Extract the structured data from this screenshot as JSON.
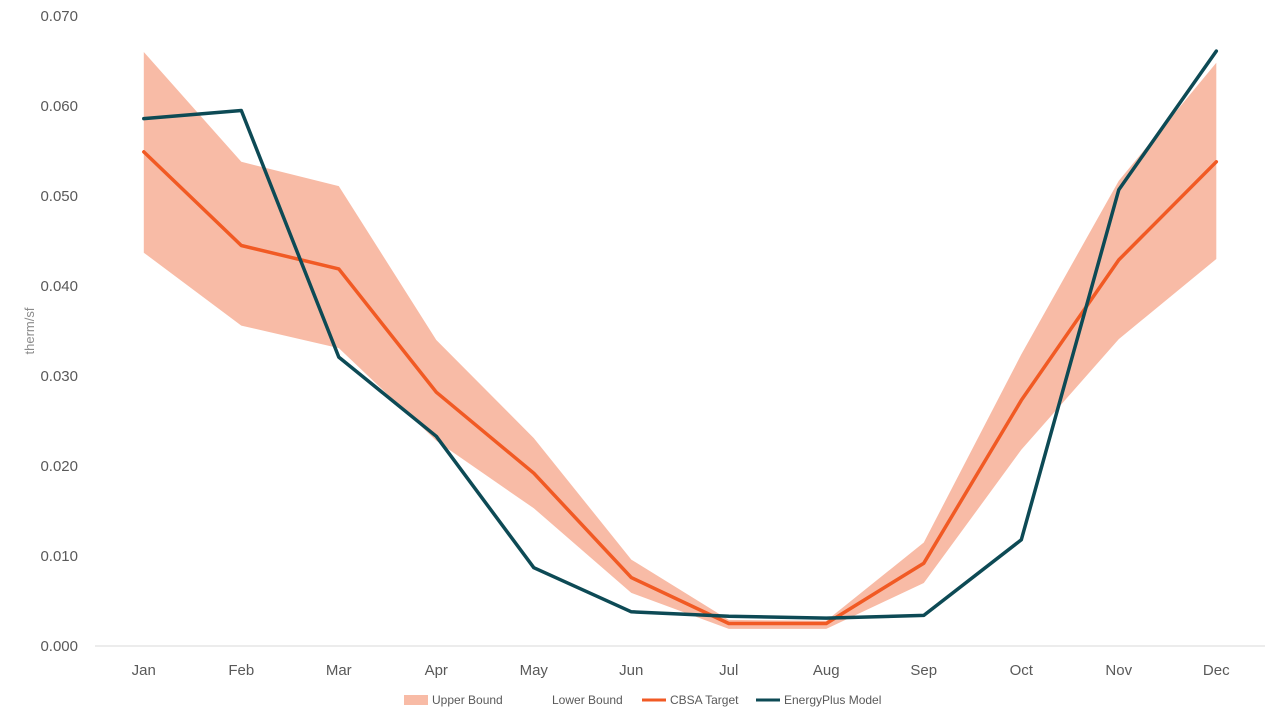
{
  "chart_data": {
    "type": "line",
    "ylabel": "therm/sf",
    "xlabel": "",
    "ylim": [
      0,
      0.07
    ],
    "yticks": [
      "0.000",
      "0.010",
      "0.020",
      "0.030",
      "0.040",
      "0.050",
      "0.060",
      "0.070"
    ],
    "categories": [
      "Jan",
      "Feb",
      "Mar",
      "Apr",
      "May",
      "Jun",
      "Jul",
      "Aug",
      "Sep",
      "Oct",
      "Nov",
      "Dec"
    ],
    "grid": false,
    "legend_position": "bottom",
    "series": [
      {
        "name": "Upper Bound",
        "kind": "band-upper",
        "color": "#f8bba6",
        "values": [
          0.066,
          0.0538,
          0.0511,
          0.034,
          0.0231,
          0.0096,
          0.0029,
          0.0028,
          0.0115,
          0.0324,
          0.0517,
          0.0648
        ]
      },
      {
        "name": "Lower Bound",
        "kind": "band-lower",
        "color": "#ffffff",
        "values": [
          0.0437,
          0.0356,
          0.0331,
          0.0228,
          0.0153,
          0.0059,
          0.0019,
          0.0019,
          0.007,
          0.0218,
          0.0341,
          0.043
        ]
      },
      {
        "name": "CBSA Target",
        "kind": "line",
        "color": "#f15a24",
        "values": [
          0.0549,
          0.0445,
          0.0419,
          0.0282,
          0.0192,
          0.0076,
          0.0025,
          0.0025,
          0.0092,
          0.0273,
          0.0429,
          0.0538
        ]
      },
      {
        "name": "EnergyPlus Model",
        "kind": "line",
        "color": "#0d4a55",
        "values": [
          0.0586,
          0.0595,
          0.0321,
          0.0233,
          0.0087,
          0.0038,
          0.0033,
          0.0031,
          0.0034,
          0.0118,
          0.0507,
          0.0661
        ]
      }
    ]
  }
}
